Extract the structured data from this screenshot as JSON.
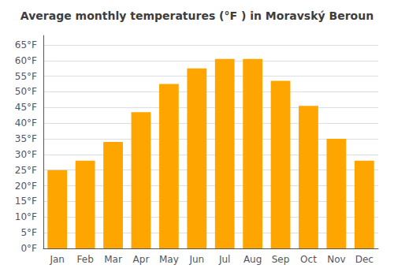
{
  "chart_data": {
    "type": "bar",
    "title": "Average monthly temperatures (°F ) in Moravský Beroun",
    "categories": [
      "Jan",
      "Feb",
      "Mar",
      "Apr",
      "May",
      "Jun",
      "Jul",
      "Aug",
      "Sep",
      "Oct",
      "Nov",
      "Dec"
    ],
    "values": [
      25,
      28,
      34,
      43.5,
      52.5,
      57.5,
      60.5,
      60.5,
      53.5,
      45.5,
      35,
      28
    ],
    "color": "#FFA500",
    "ylim": [
      0,
      68
    ],
    "yticks": [
      {
        "value": 0,
        "label": "0°F"
      },
      {
        "value": 5,
        "label": "5°F"
      },
      {
        "value": 10,
        "label": "10°F"
      },
      {
        "value": 15,
        "label": "15°F"
      },
      {
        "value": 20,
        "label": "20°F"
      },
      {
        "value": 25,
        "label": "25°F"
      },
      {
        "value": 30,
        "label": "30°F"
      },
      {
        "value": 35,
        "label": "35°F"
      },
      {
        "value": 40,
        "label": "40°F"
      },
      {
        "value": 45,
        "label": "45°F"
      },
      {
        "value": 50,
        "label": "50°F"
      },
      {
        "value": 55,
        "label": "55°F"
      },
      {
        "value": 60,
        "label": "60°F"
      },
      {
        "value": 65,
        "label": "65°F"
      }
    ],
    "grid": true
  }
}
